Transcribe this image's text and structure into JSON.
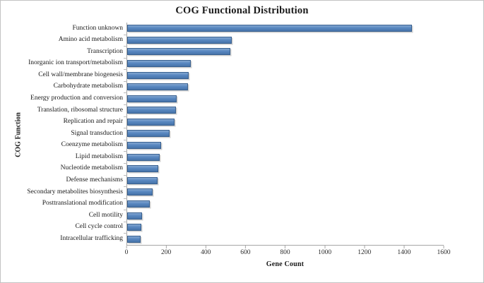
{
  "chart_data": {
    "type": "bar",
    "orientation": "horizontal",
    "title": "COG Functional Distribution",
    "xlabel": "Gene Count",
    "ylabel": "COG Function",
    "categories": [
      "Function unknown",
      "Amino acid metabolism",
      "Transcription",
      "Inorganic ion transport/metabolism",
      "Cell wall/membrane biogenesis",
      "Carbohydrate metabolism",
      "Energy production and conversion",
      "Translation, ribosomal structure",
      "Replication and repair",
      "Signal transduction",
      "Coenzyme metabolism",
      "Lipid metabolism",
      "Nucleotide metabolism",
      "Defense mechanisms",
      "Secondary metabolites biosynthesis",
      "Posttranslational modification",
      "Cell motility",
      "Cell cycle control",
      "Intracellular trafficking"
    ],
    "values": [
      1440,
      530,
      520,
      322,
      312,
      308,
      251,
      245,
      241,
      216,
      170,
      163,
      157,
      154,
      127,
      116,
      75,
      73,
      68
    ],
    "xlim": [
      0,
      1600
    ],
    "xticks": [
      0,
      200,
      400,
      600,
      800,
      1000,
      1200,
      1400,
      1600
    ],
    "grid": false,
    "legend": null,
    "bar_color": "#4f81bd",
    "bar_border_color": "#38608f",
    "axis_color": "#a6a6a6"
  }
}
